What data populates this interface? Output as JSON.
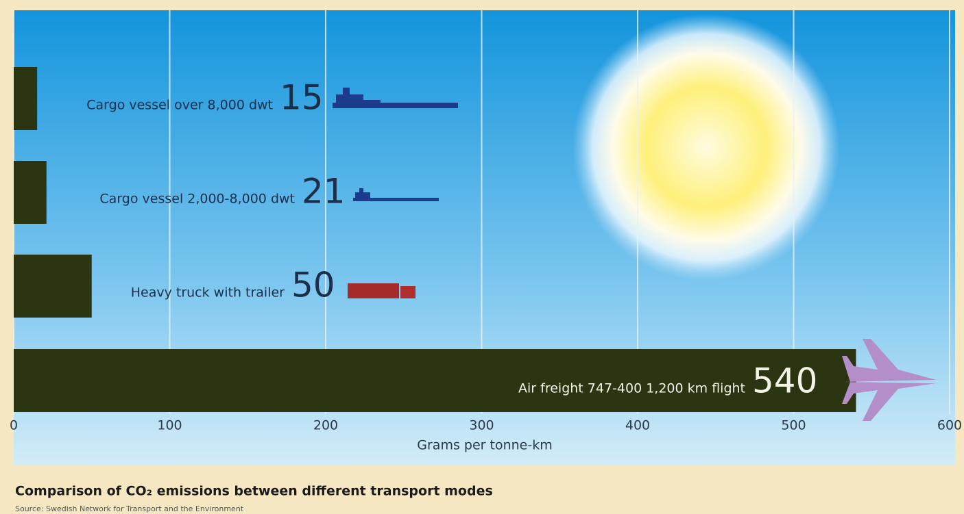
{
  "chart_data": {
    "type": "bar",
    "orientation": "horizontal",
    "title": "Comparison of CO₂ emissions between different transport modes",
    "source": "Source: Swedish Network for Transport and the Environment",
    "x_label": "Grams per tonne-km",
    "categories": [
      "Cargo vessel over 8,000 dwt",
      "Cargo vessel 2,000-8,000 dwt",
      "Heavy truck with trailer",
      "Air freight 747-400 1,200 km flight"
    ],
    "values": [
      15,
      21,
      50,
      540
    ],
    "color": "#2b3511",
    "xlim": [
      0,
      600
    ],
    "xticks": [
      0,
      100,
      200,
      300,
      400,
      500,
      600
    ],
    "grid": true
  }
}
